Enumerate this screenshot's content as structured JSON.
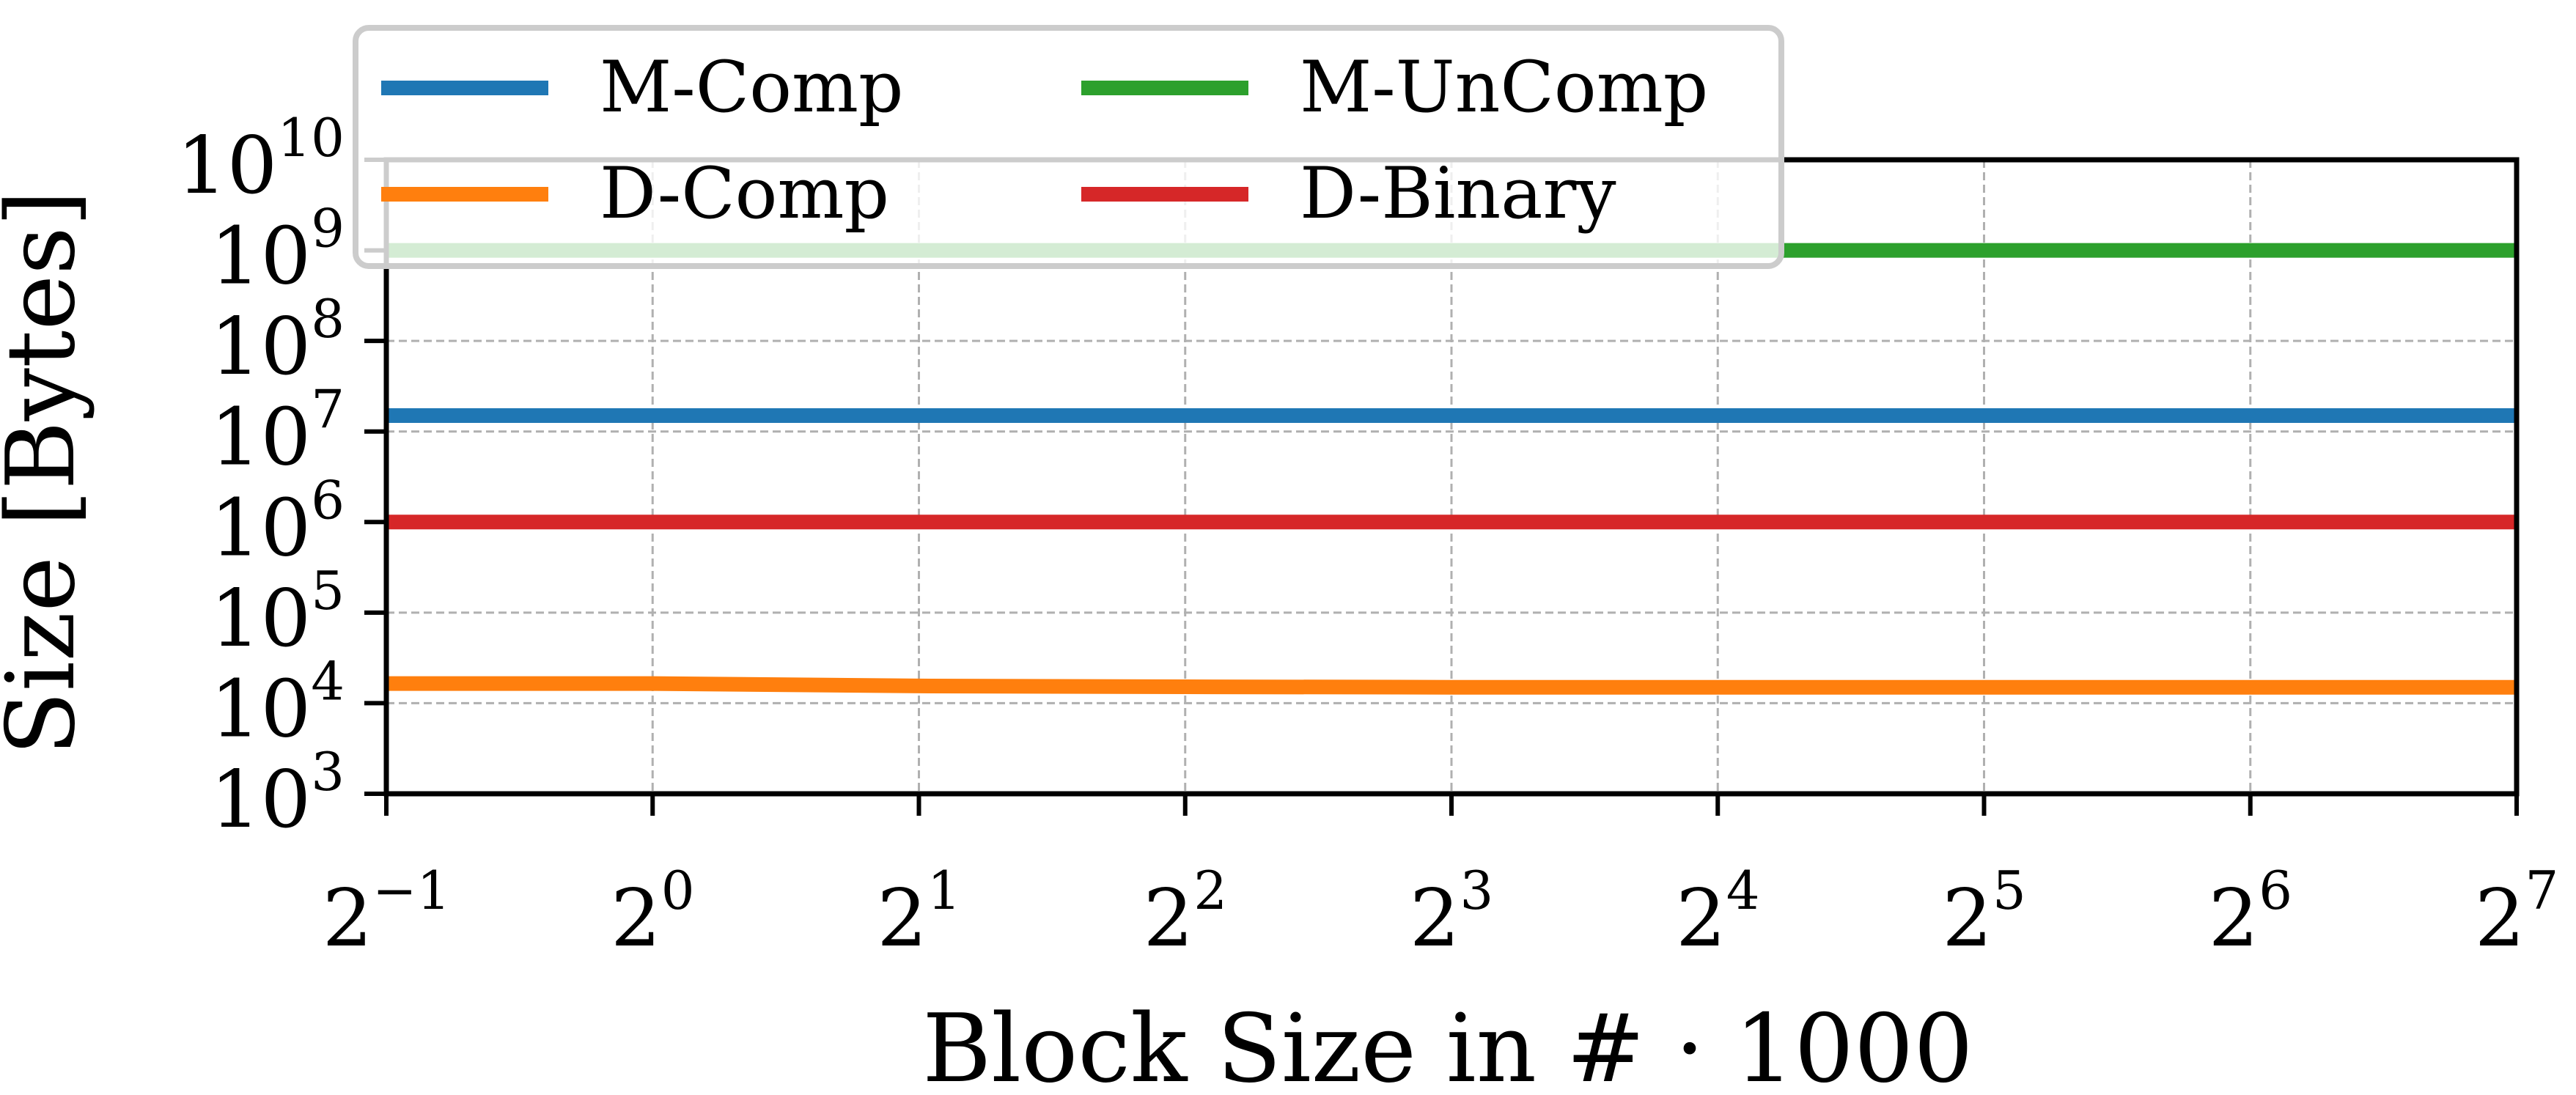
{
  "chart_data": {
    "type": "line",
    "xlabel": "Block Size in # · 1000",
    "ylabel": "Size [Bytes]",
    "x_scale": "log2",
    "y_scale": "log10",
    "x": [
      0.5,
      1,
      2,
      4,
      8,
      16,
      32,
      64,
      128
    ],
    "xlim": [
      0.5,
      128
    ],
    "ylim": [
      1000,
      10000000000
    ],
    "x_ticks": [
      {
        "base": "2",
        "exp": "−1",
        "value": 0.5
      },
      {
        "base": "2",
        "exp": "0",
        "value": 1
      },
      {
        "base": "2",
        "exp": "1",
        "value": 2
      },
      {
        "base": "2",
        "exp": "2",
        "value": 4
      },
      {
        "base": "2",
        "exp": "3",
        "value": 8
      },
      {
        "base": "2",
        "exp": "4",
        "value": 16
      },
      {
        "base": "2",
        "exp": "5",
        "value": 32
      },
      {
        "base": "2",
        "exp": "6",
        "value": 64
      },
      {
        "base": "2",
        "exp": "7",
        "value": 128
      }
    ],
    "y_ticks": [
      {
        "base": "10",
        "exp": "3",
        "value": 1000
      },
      {
        "base": "10",
        "exp": "4",
        "value": 10000
      },
      {
        "base": "10",
        "exp": "5",
        "value": 100000
      },
      {
        "base": "10",
        "exp": "6",
        "value": 1000000
      },
      {
        "base": "10",
        "exp": "7",
        "value": 10000000
      },
      {
        "base": "10",
        "exp": "8",
        "value": 100000000
      },
      {
        "base": "10",
        "exp": "9",
        "value": 1000000000
      },
      {
        "base": "10",
        "exp": "10",
        "value": 10000000000
      }
    ],
    "grid": true,
    "legend_position": "top-left",
    "legend_columns": 2,
    "series": [
      {
        "name": "M-Comp",
        "color": "#1f77b4",
        "values": [
          15000000,
          15000000,
          15000000,
          15000000,
          15000000,
          15000000,
          15000000,
          15000000,
          15000000
        ]
      },
      {
        "name": "M-UnComp",
        "color": "#2ca02c",
        "values": [
          1000000000,
          1000000000,
          1000000000,
          1000000000,
          1000000000,
          1000000000,
          1000000000,
          1000000000,
          1000000000
        ]
      },
      {
        "name": "D-Comp",
        "color": "#ff7f0e",
        "values": [
          16500,
          16500,
          15500,
          15200,
          15000,
          15000,
          15000,
          15000,
          15000
        ]
      },
      {
        "name": "D-Binary",
        "color": "#d62728",
        "values": [
          1000000,
          1000000,
          1000000,
          1000000,
          1000000,
          1000000,
          1000000,
          1000000,
          1000000
        ]
      }
    ]
  }
}
